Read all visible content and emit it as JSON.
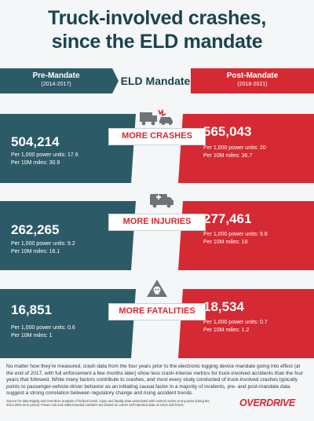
{
  "title": [
    "Truck-involved crashes,",
    "since the ELD mandate"
  ],
  "header": {
    "pre_label": "Pre-Mandate",
    "pre_years": "(2014-2017)",
    "center_label": "ELD Mandate",
    "post_label": "Post-Mandate",
    "post_years": "(2018-2021)"
  },
  "colors": {
    "pre": "#2d5a67",
    "post": "#d52a33",
    "title": "#1c4350"
  },
  "chart_data": {
    "type": "table",
    "title": "Truck-involved crashes, since the ELD mandate",
    "columns": [
      "Pre-Mandate (2014-2017)",
      "Post-Mandate (2018-2021)"
    ],
    "rows": [
      {
        "label": "MORE CRASHES",
        "icon": "truck-car-collision-icon",
        "pre": {
          "total": "504,214",
          "per_power_units": "Per 1,000 power units: 17.6",
          "per_miles": "Per 10M miles: 30.9"
        },
        "post": {
          "total": "565,043",
          "per_power_units": "Per 1,000 power units: 20",
          "per_miles": "Per 10M miles: 36.7"
        }
      },
      {
        "label": "MORE INJURIES",
        "icon": "ambulance-icon",
        "pre": {
          "total": "262,265",
          "per_power_units": "Per 1,000 power units: 9.2",
          "per_miles": "Per 10M miles: 16.1"
        },
        "post": {
          "total": "277,461",
          "per_power_units": "Per 1,000 power units: 9.8",
          "per_miles": "Per 10M miles: 18"
        }
      },
      {
        "label": "MORE FATALITIES",
        "icon": "skull-warning-icon",
        "pre": {
          "total": "16,851",
          "per_power_units": "Per 1,000 power units: 0.6",
          "per_miles": "Per 10M miles: 1"
        },
        "post": {
          "total": "18,534",
          "per_power_units": "Per 1,000 power units: 0.7",
          "per_miles": "Per 10M miles: 1.2"
        }
      }
    ]
  },
  "footer": {
    "body": "No matter how they're measured, crash data from the four years prior to the electronic logging device mandate going into effect (at the end of 2017, with full enforcement a few months later) show less crash-intense metrics for truck-involved accidents than the four years that followed. While many factors contribute to crashes, and most every study conducted of truck-involved crashes typically points to passenger-vehicle-driver behavior as an initiating causal factor in a majority of incidents, pre- and post-mandate data suggest a strong correlation between regulatory change and rising accident trends.",
    "source": "Source for data RigDig and Overdrive analysis of federal crash, injury and fatality data associated with carriers active at any point during the 2014-2021 time period. Power unit and miles traveled numbers are based on carrier self-reported data on MCS-150 forms.",
    "logo": "OVERDRIVE"
  }
}
